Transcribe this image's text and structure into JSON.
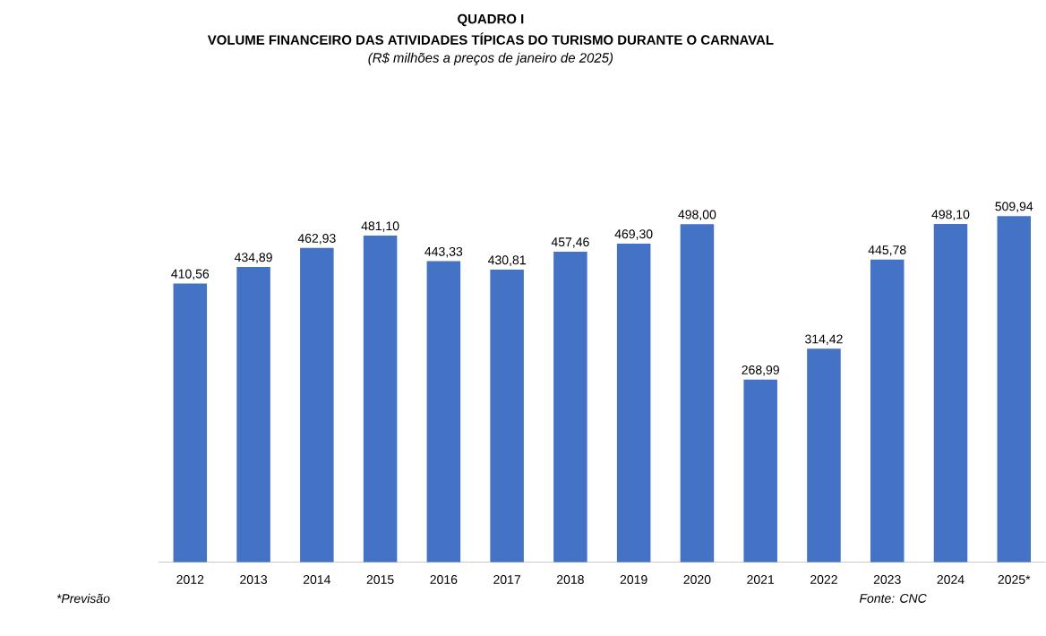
{
  "chart_data": {
    "type": "bar",
    "title": "QUADRO I",
    "subtitle": "VOLUME FINANCEIRO DAS ATIVIDADES TÍPICAS DO TURISMO DURANTE O CARNAVAL",
    "categories": [
      "2012",
      "2013",
      "2014",
      "2015",
      "2016",
      "2017",
      "2018",
      "2019",
      "2020",
      "2021",
      "2022",
      "2023",
      "2024",
      "2025*"
    ],
    "values": [
      410.56,
      434.89,
      462.93,
      481.1,
      443.33,
      430.81,
      457.46,
      469.3,
      498.0,
      268.99,
      314.42,
      445.78,
      498.1,
      509.94
    ],
    "value_labels": [
      "410,56",
      "434,89",
      "462,93",
      "481,10",
      "443,33",
      "430,81",
      "457,46",
      "469,30",
      "498,00",
      "268,99",
      "314,42",
      "445,78",
      "498,10",
      "509,94"
    ],
    "color": "#4472c4",
    "tick_labels": "x",
    "grid": false,
    "annotations": [
      "(R$ milhões a preços de janeiro de 2025)",
      "*Previsão",
      "Fonte: CNC"
    ]
  }
}
